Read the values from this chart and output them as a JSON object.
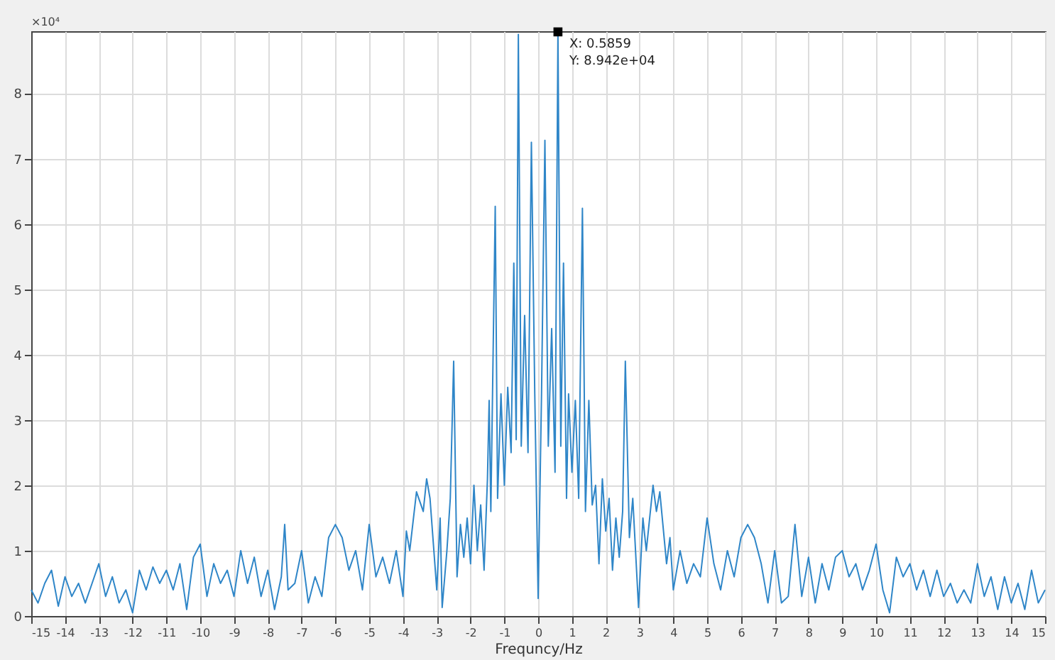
{
  "chart_data": {
    "type": "line",
    "xlabel": "Frequncy/Hz",
    "x": [
      -15,
      -14.8,
      -14.6,
      -14.4,
      -14.2,
      -14,
      -13.8,
      -13.6,
      -13.4,
      -13.2,
      -13,
      -12.8,
      -12.6,
      -12.4,
      -12.2,
      -12,
      -11.8,
      -11.6,
      -11.4,
      -11.2,
      -11,
      -10.8,
      -10.6,
      -10.4,
      -10.2,
      -10,
      -9.8,
      -9.6,
      -9.4,
      -9.2,
      -9,
      -8.8,
      -8.6,
      -8.4,
      -8.2,
      -8,
      -7.8,
      -7.6,
      -7.5,
      -7.4,
      -7.2,
      -7,
      -6.8,
      -6.6,
      -6.4,
      -6.2,
      -6,
      -5.8,
      -5.6,
      -5.4,
      -5.2,
      -5,
      -4.8,
      -4.6,
      -4.4,
      -4.2,
      -4,
      -3.9,
      -3.8,
      -3.6,
      -3.4,
      -3.3,
      -3.2,
      -3,
      -2.9,
      -2.84,
      -2.7,
      -2.6,
      -2.5,
      -2.4,
      -2.3,
      -2.2,
      -2.1,
      -2,
      -1.9,
      -1.8,
      -1.7,
      -1.6,
      -1.5,
      -1.45,
      -1.4,
      -1.27,
      -1.2,
      -1.1,
      -1,
      -0.9,
      -0.8,
      -0.72,
      -0.65,
      -0.5859,
      -0.5,
      -0.4,
      -0.3,
      -0.2,
      -0.1,
      0,
      0.1,
      0.2,
      0.3,
      0.4,
      0.5,
      0.5859,
      0.67,
      0.75,
      0.84,
      0.9,
      1,
      1.1,
      1.2,
      1.31,
      1.4,
      1.5,
      1.6,
      1.7,
      1.8,
      1.9,
      2,
      2.1,
      2.2,
      2.3,
      2.4,
      2.5,
      2.58,
      2.7,
      2.8,
      2.97,
      3.1,
      3.2,
      3.4,
      3.5,
      3.6,
      3.8,
      3.9,
      4,
      4.2,
      4.4,
      4.6,
      4.8,
      5,
      5.2,
      5.4,
      5.6,
      5.8,
      6,
      6.2,
      6.4,
      6.6,
      6.8,
      7,
      7.2,
      7.4,
      7.6,
      7.8,
      8,
      8.2,
      8.4,
      8.6,
      8.8,
      9,
      9.2,
      9.4,
      9.6,
      9.8,
      10,
      10.2,
      10.4,
      10.6,
      10.8,
      11,
      11.2,
      11.4,
      11.6,
      11.8,
      12,
      12.2,
      12.4,
      12.6,
      12.8,
      13,
      13.2,
      13.4,
      13.6,
      13.8,
      14,
      14.2,
      14.4,
      14.6,
      14.8,
      15
    ],
    "series": [
      {
        "color": "#2f86c8",
        "values": [
          0.4,
          0.2,
          0.5,
          0.7,
          0.15,
          0.6,
          0.3,
          0.5,
          0.2,
          0.5,
          0.8,
          0.3,
          0.6,
          0.2,
          0.4,
          0.05,
          0.7,
          0.4,
          0.75,
          0.5,
          0.7,
          0.4,
          0.8,
          0.1,
          0.9,
          1.1,
          0.3,
          0.8,
          0.5,
          0.7,
          0.3,
          1.0,
          0.5,
          0.9,
          0.3,
          0.7,
          0.1,
          0.6,
          1.4,
          0.4,
          0.5,
          1.0,
          0.2,
          0.6,
          0.3,
          1.2,
          1.4,
          1.2,
          0.7,
          1.0,
          0.4,
          1.4,
          0.6,
          0.9,
          0.5,
          1.0,
          0.3,
          1.3,
          1.0,
          1.9,
          1.6,
          2.1,
          1.8,
          0.4,
          1.5,
          0.13,
          1.0,
          1.8,
          3.9,
          0.6,
          1.4,
          0.9,
          1.5,
          0.8,
          2.0,
          1.0,
          1.7,
          0.7,
          2.1,
          3.3,
          1.6,
          6.27,
          1.8,
          3.4,
          2.0,
          3.5,
          2.5,
          5.4,
          2.7,
          8.9,
          2.6,
          4.6,
          2.5,
          7.25,
          3.4,
          0.27,
          3.4,
          7.28,
          2.6,
          4.4,
          2.2,
          8.94,
          2.6,
          5.4,
          1.8,
          3.4,
          2.2,
          3.3,
          1.8,
          6.24,
          1.6,
          3.3,
          1.7,
          2.0,
          0.8,
          2.1,
          1.3,
          1.8,
          0.7,
          1.5,
          0.9,
          1.6,
          3.9,
          1.2,
          1.8,
          0.13,
          1.5,
          1.0,
          2.0,
          1.6,
          1.9,
          0.8,
          1.2,
          0.4,
          1.0,
          0.5,
          0.8,
          0.6,
          1.5,
          0.8,
          0.4,
          1.0,
          0.6,
          1.2,
          1.4,
          1.2,
          0.8,
          0.2,
          1.0,
          0.2,
          0.3,
          1.4,
          0.3,
          0.9,
          0.2,
          0.8,
          0.4,
          0.9,
          1.0,
          0.6,
          0.8,
          0.4,
          0.7,
          1.1,
          0.4,
          0.05,
          0.9,
          0.6,
          0.8,
          0.4,
          0.7,
          0.3,
          0.7,
          0.3,
          0.5,
          0.2,
          0.4,
          0.2,
          0.8,
          0.3,
          0.6,
          0.1,
          0.6,
          0.2,
          0.5,
          0.1,
          0.7,
          0.2,
          0.4
        ]
      }
    ],
    "xlim": [
      -15,
      15
    ],
    "xticks": [
      -15,
      -14,
      -13,
      -12,
      -11,
      -10,
      -9,
      -8,
      -7,
      -6,
      -5,
      -4,
      -3,
      -2,
      -1,
      0,
      1,
      2,
      3,
      4,
      5,
      6,
      7,
      8,
      9,
      10,
      11,
      12,
      13,
      14,
      15
    ],
    "ylim": [
      0,
      8.95
    ],
    "yticks": [
      0,
      1,
      2,
      3,
      4,
      5,
      6,
      7,
      8
    ],
    "grid": true,
    "marker": "none",
    "line_style": "solid",
    "annotations": [
      "×10⁴",
      {
        "text": "X: 0.5859\nY: 8.942e+04",
        "x": 0.5859,
        "y": 8.94
      }
    ]
  }
}
